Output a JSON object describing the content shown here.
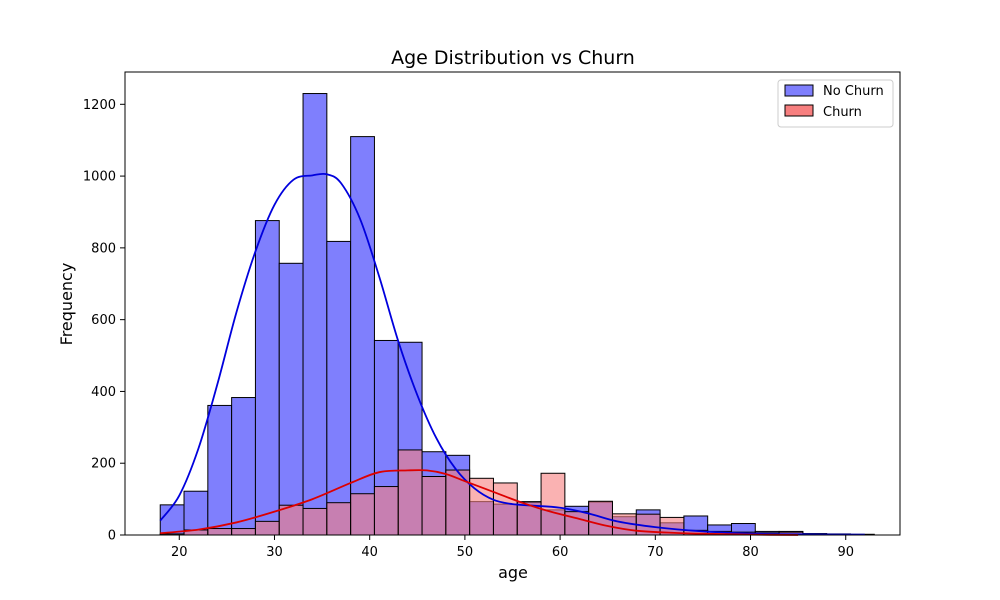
{
  "chart_data": {
    "type": "bar",
    "title": "Age Distribution vs Churn",
    "xlabel": "age",
    "ylabel": "Frequency",
    "xlim": [
      14.3,
      95.7
    ],
    "ylim": [
      0,
      1290
    ],
    "x_ticks": [
      20,
      30,
      40,
      50,
      60,
      70,
      80,
      90
    ],
    "y_ticks": [
      0,
      200,
      400,
      600,
      800,
      1000,
      1200
    ],
    "grid": false,
    "legend_placement": "top-right",
    "series": [
      {
        "name": "No Churn",
        "color": "#7f7ffd",
        "curve_color": "#0000dd",
        "bin_start": 18,
        "bin_width": 2.5,
        "values": [
          84,
          122,
          361,
          383,
          876,
          757,
          1230,
          818,
          1110,
          542,
          537,
          232,
          222,
          93,
          86,
          93,
          70,
          80,
          92,
          51,
          70,
          34,
          53,
          28,
          32,
          10,
          10,
          4,
          3,
          2
        ]
      },
      {
        "name": "Churn",
        "color": "#f77f7f",
        "curve_color": "#dd0000",
        "bin_start": 18,
        "bin_width": 2.5,
        "values": [
          3,
          14,
          18,
          18,
          38,
          83,
          74,
          90,
          115,
          135,
          237,
          163,
          181,
          158,
          145,
          92,
          172,
          65,
          94,
          59,
          58,
          49,
          13,
          10,
          8,
          6,
          8,
          3,
          0,
          0
        ]
      }
    ],
    "kde": [
      {
        "name": "No Churn",
        "color": "#0000dd",
        "x": [
          18,
          20,
          22,
          24,
          26,
          28,
          30,
          32,
          34,
          35.5,
          37,
          39,
          41,
          43,
          45,
          47,
          49,
          51,
          53,
          55,
          57,
          60,
          63,
          66,
          70,
          75,
          80,
          85,
          92
        ],
        "y": [
          40,
          110,
          240,
          420,
          620,
          790,
          920,
          990,
          1002,
          1005,
          980,
          880,
          720,
          540,
          390,
          270,
          185,
          130,
          98,
          86,
          82,
          76,
          60,
          38,
          22,
          10,
          4,
          2,
          1
        ]
      },
      {
        "name": "Churn",
        "color": "#dd0000",
        "x": [
          18,
          22,
          26,
          30,
          34,
          38,
          41,
          44,
          46,
          48,
          50,
          53,
          56,
          59,
          62,
          65,
          68,
          72,
          76,
          80,
          85
        ],
        "y": [
          5,
          15,
          35,
          65,
          100,
          145,
          175,
          180,
          180,
          170,
          150,
          120,
          90,
          65,
          45,
          25,
          12,
          6,
          3,
          1,
          0
        ]
      }
    ]
  }
}
